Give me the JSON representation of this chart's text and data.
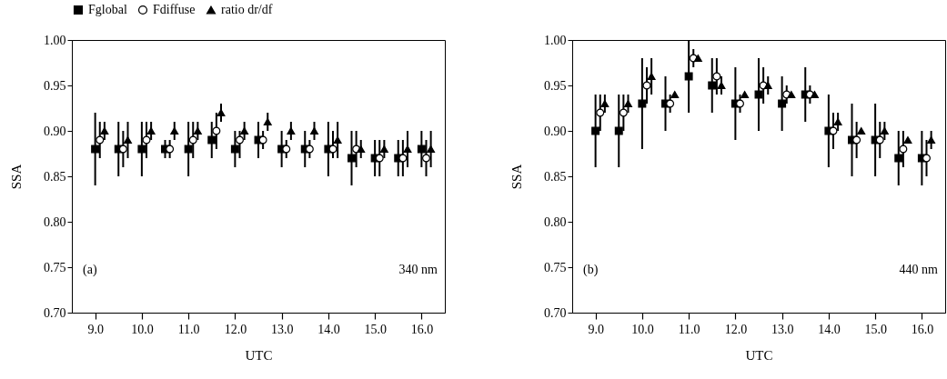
{
  "chart_data": [
    {
      "type": "scatter",
      "xlabel": "UTC",
      "ylabel": "SSA",
      "legend": "top",
      "grid": false,
      "annotations": [
        "(a)",
        "340 nm"
      ],
      "xlim": [
        8.5,
        16.5
      ],
      "ylim": [
        0.7,
        1.0
      ],
      "xticks": [
        {
          "value": 9,
          "label": "9.0"
        },
        {
          "value": 10,
          "label": "10.0"
        },
        {
          "value": 11,
          "label": "11.0"
        },
        {
          "value": 12,
          "label": "12.0"
        },
        {
          "value": 13,
          "label": "13.0"
        },
        {
          "value": 14,
          "label": "14.0"
        },
        {
          "value": 15,
          "label": "15.0"
        },
        {
          "value": 16,
          "label": "16.0"
        }
      ],
      "yticks": [
        {
          "value": 0.7,
          "label": "0.70"
        },
        {
          "value": 0.75,
          "label": "0.75"
        },
        {
          "value": 0.8,
          "label": "0.80"
        },
        {
          "value": 0.85,
          "label": "0.85"
        },
        {
          "value": 0.9,
          "label": "0.90"
        },
        {
          "value": 0.95,
          "label": "0.95"
        },
        {
          "value": 1.0,
          "label": "1.00"
        }
      ],
      "series": [
        {
          "name": "Fglobal",
          "color": "#000000",
          "marker": "square",
          "x": [
            9.0,
            9.5,
            10.0,
            10.5,
            11.0,
            11.5,
            12.0,
            12.5,
            13.0,
            13.5,
            14.0,
            14.5,
            15.0,
            15.5,
            16.0
          ],
          "values": [
            0.88,
            0.88,
            0.88,
            0.88,
            0.88,
            0.89,
            0.88,
            0.89,
            0.88,
            0.88,
            0.88,
            0.87,
            0.87,
            0.87,
            0.88
          ],
          "errors": [
            [
              0.84,
              0.92
            ],
            [
              0.85,
              0.91
            ],
            [
              0.85,
              0.91
            ],
            [
              0.87,
              0.89
            ],
            [
              0.85,
              0.91
            ],
            [
              0.87,
              0.91
            ],
            [
              0.86,
              0.9
            ],
            [
              0.87,
              0.91
            ],
            [
              0.86,
              0.9
            ],
            [
              0.86,
              0.9
            ],
            [
              0.85,
              0.91
            ],
            [
              0.84,
              0.9
            ],
            [
              0.85,
              0.89
            ],
            [
              0.85,
              0.89
            ],
            [
              0.86,
              0.9
            ]
          ]
        },
        {
          "name": "Fdiffuse",
          "color": "#000000",
          "marker": "circle",
          "x": [
            9.1,
            9.6,
            10.1,
            10.6,
            11.1,
            11.6,
            12.1,
            12.6,
            13.1,
            13.6,
            14.1,
            14.6,
            15.1,
            15.6,
            16.1
          ],
          "values": [
            0.89,
            0.88,
            0.89,
            0.88,
            0.89,
            0.9,
            0.89,
            0.89,
            0.88,
            0.88,
            0.88,
            0.88,
            0.87,
            0.87,
            0.87
          ],
          "errors": [
            [
              0.87,
              0.91
            ],
            [
              0.86,
              0.9
            ],
            [
              0.87,
              0.91
            ],
            [
              0.87,
              0.89
            ],
            [
              0.87,
              0.91
            ],
            [
              0.88,
              0.92
            ],
            [
              0.87,
              0.9
            ],
            [
              0.88,
              0.9
            ],
            [
              0.87,
              0.89
            ],
            [
              0.87,
              0.89
            ],
            [
              0.87,
              0.9
            ],
            [
              0.86,
              0.9
            ],
            [
              0.85,
              0.89
            ],
            [
              0.85,
              0.89
            ],
            [
              0.85,
              0.89
            ]
          ]
        },
        {
          "name": "ratio dr/df",
          "color": "#000000",
          "marker": "triangle",
          "x": [
            9.2,
            9.7,
            10.2,
            10.7,
            11.2,
            11.7,
            12.2,
            12.7,
            13.2,
            13.7,
            14.2,
            14.7,
            15.2,
            15.7,
            16.2
          ],
          "values": [
            0.9,
            0.89,
            0.9,
            0.9,
            0.9,
            0.92,
            0.9,
            0.91,
            0.9,
            0.9,
            0.89,
            0.88,
            0.88,
            0.88,
            0.88
          ],
          "errors": [
            [
              0.89,
              0.91
            ],
            [
              0.87,
              0.91
            ],
            [
              0.89,
              0.91
            ],
            [
              0.89,
              0.91
            ],
            [
              0.89,
              0.91
            ],
            [
              0.91,
              0.93
            ],
            [
              0.89,
              0.91
            ],
            [
              0.9,
              0.92
            ],
            [
              0.89,
              0.91
            ],
            [
              0.89,
              0.91
            ],
            [
              0.87,
              0.91
            ],
            [
              0.87,
              0.89
            ],
            [
              0.87,
              0.89
            ],
            [
              0.86,
              0.9
            ],
            [
              0.86,
              0.9
            ]
          ]
        }
      ]
    },
    {
      "type": "scatter",
      "xlabel": "UTC",
      "ylabel": "SSA",
      "grid": false,
      "annotations": [
        "(b)",
        "440 nm"
      ],
      "xlim": [
        8.5,
        16.5
      ],
      "ylim": [
        0.7,
        1.0
      ],
      "xticks": [
        {
          "value": 9,
          "label": "9.0"
        },
        {
          "value": 10,
          "label": "10.0"
        },
        {
          "value": 11,
          "label": "11.0"
        },
        {
          "value": 12,
          "label": "12.0"
        },
        {
          "value": 13,
          "label": "13.0"
        },
        {
          "value": 14,
          "label": "14.0"
        },
        {
          "value": 15,
          "label": "15.0"
        },
        {
          "value": 16,
          "label": "16.0"
        }
      ],
      "yticks": [
        {
          "value": 0.7,
          "label": "0.70"
        },
        {
          "value": 0.75,
          "label": "0.75"
        },
        {
          "value": 0.8,
          "label": "0.80"
        },
        {
          "value": 0.85,
          "label": "0.85"
        },
        {
          "value": 0.9,
          "label": "0.90"
        },
        {
          "value": 0.95,
          "label": "0.95"
        },
        {
          "value": 1.0,
          "label": "1.00"
        }
      ],
      "series": [
        {
          "name": "Fglobal",
          "color": "#000000",
          "marker": "square",
          "x": [
            9.0,
            9.5,
            10.0,
            10.5,
            11.0,
            11.5,
            12.0,
            12.5,
            13.0,
            13.5,
            14.0,
            14.5,
            15.0,
            15.5,
            16.0
          ],
          "values": [
            0.9,
            0.9,
            0.93,
            0.93,
            0.96,
            0.95,
            0.93,
            0.94,
            0.93,
            0.94,
            0.9,
            0.89,
            0.89,
            0.87,
            0.87
          ],
          "errors": [
            [
              0.86,
              0.94
            ],
            [
              0.86,
              0.94
            ],
            [
              0.88,
              0.98
            ],
            [
              0.9,
              0.96
            ],
            [
              0.92,
              1.0
            ],
            [
              0.92,
              0.98
            ],
            [
              0.89,
              0.97
            ],
            [
              0.9,
              0.98
            ],
            [
              0.9,
              0.96
            ],
            [
              0.91,
              0.97
            ],
            [
              0.86,
              0.94
            ],
            [
              0.85,
              0.93
            ],
            [
              0.85,
              0.93
            ],
            [
              0.84,
              0.9
            ],
            [
              0.84,
              0.9
            ]
          ]
        },
        {
          "name": "Fdiffuse",
          "color": "#000000",
          "marker": "circle",
          "x": [
            9.1,
            9.6,
            10.1,
            10.6,
            11.1,
            11.6,
            12.1,
            12.6,
            13.1,
            13.6,
            14.1,
            14.6,
            15.1,
            15.6,
            16.1
          ],
          "values": [
            0.92,
            0.92,
            0.95,
            0.93,
            0.98,
            0.96,
            0.93,
            0.95,
            0.94,
            0.94,
            0.9,
            0.89,
            0.89,
            0.88,
            0.87
          ],
          "errors": [
            [
              0.9,
              0.94
            ],
            [
              0.9,
              0.94
            ],
            [
              0.93,
              0.97
            ],
            [
              0.92,
              0.94
            ],
            [
              0.97,
              0.99
            ],
            [
              0.94,
              0.98
            ],
            [
              0.92,
              0.94
            ],
            [
              0.93,
              0.97
            ],
            [
              0.93,
              0.95
            ],
            [
              0.93,
              0.95
            ],
            [
              0.88,
              0.92
            ],
            [
              0.87,
              0.91
            ],
            [
              0.87,
              0.91
            ],
            [
              0.86,
              0.9
            ],
            [
              0.85,
              0.89
            ]
          ]
        },
        {
          "name": "ratio dr/df",
          "color": "#000000",
          "marker": "triangle",
          "x": [
            9.2,
            9.7,
            10.2,
            10.7,
            11.2,
            11.7,
            12.2,
            12.7,
            13.2,
            13.7,
            14.2,
            14.7,
            15.2,
            15.7,
            16.2
          ],
          "values": [
            0.93,
            0.93,
            0.96,
            0.94,
            0.98,
            0.95,
            0.94,
            0.95,
            0.94,
            0.94,
            0.91,
            0.9,
            0.9,
            0.89,
            0.89
          ],
          "errors": [
            [
              0.92,
              0.94
            ],
            [
              0.92,
              0.94
            ],
            [
              0.94,
              0.98
            ],
            null,
            null,
            [
              0.94,
              0.96
            ],
            null,
            [
              0.94,
              0.96
            ],
            null,
            null,
            [
              0.9,
              0.92
            ],
            null,
            [
              0.89,
              0.91
            ],
            null,
            [
              0.88,
              0.9
            ]
          ]
        }
      ]
    }
  ]
}
